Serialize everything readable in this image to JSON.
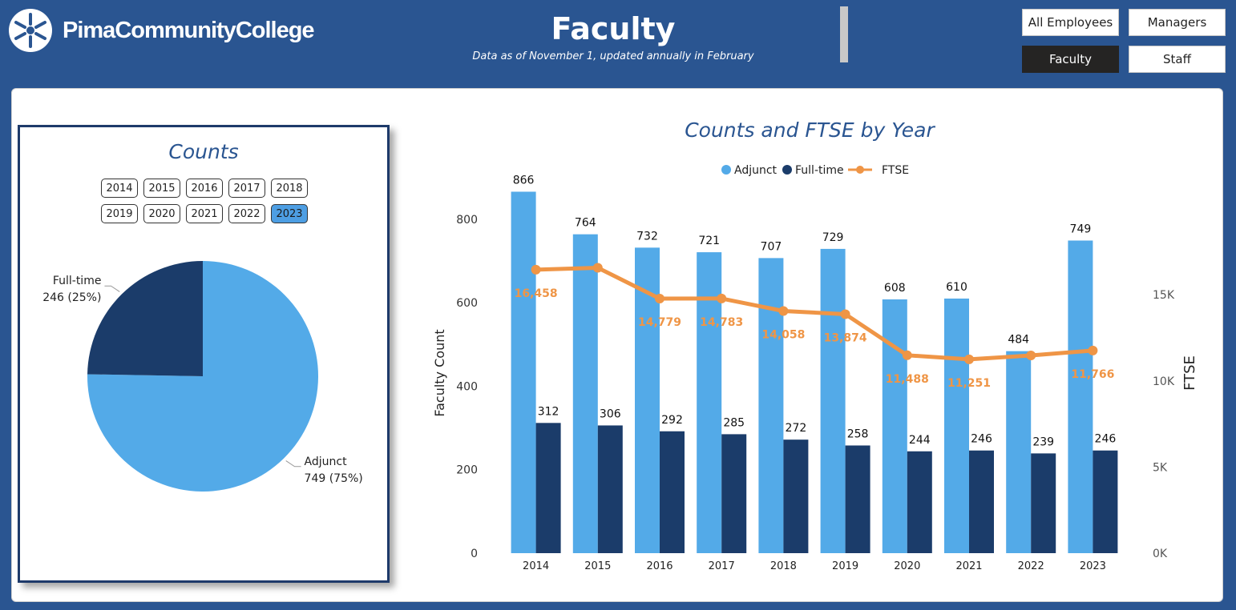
{
  "header": {
    "college_name": "PimaCommunityCollege",
    "title": "Faculty",
    "subtitle": "Data as of November 1, updated annually in February"
  },
  "nav": {
    "all_employees": "All Employees",
    "managers": "Managers",
    "faculty": "Faculty",
    "staff": "Staff",
    "active": "Faculty"
  },
  "colors": {
    "adjunct": "#53aae8",
    "fulltime": "#1b3c6a",
    "ftse": "#ef9546",
    "header_bg": "#2a5591"
  },
  "counts_card": {
    "title": "Counts",
    "years": [
      "2014",
      "2015",
      "2016",
      "2017",
      "2018",
      "2019",
      "2020",
      "2021",
      "2022",
      "2023"
    ],
    "selected_year": "2023"
  },
  "chart_data": [
    {
      "type": "pie",
      "title": "Counts",
      "slices": [
        {
          "label": "Adjunct",
          "value": 749,
          "display": "749 (75%)",
          "color": "#53aae8"
        },
        {
          "label": "Full-time",
          "value": 246,
          "display": "246 (25%)",
          "color": "#1b3c6a"
        }
      ]
    },
    {
      "type": "bar",
      "title": "Counts and FTSE by Year",
      "categories": [
        "2014",
        "2015",
        "2016",
        "2017",
        "2018",
        "2019",
        "2020",
        "2021",
        "2022",
        "2023"
      ],
      "series": [
        {
          "name": "Adjunct",
          "values": [
            866,
            764,
            732,
            721,
            707,
            729,
            608,
            610,
            484,
            749
          ],
          "labels": [
            "866",
            "764",
            "732",
            "721",
            "707",
            "729",
            "608",
            "610",
            "484",
            "749"
          ]
        },
        {
          "name": "Full-time",
          "values": [
            312,
            306,
            292,
            285,
            272,
            258,
            244,
            246,
            239,
            246
          ],
          "labels": [
            "312",
            "306",
            "292",
            "285",
            "272",
            "258",
            "244",
            "246",
            "239",
            "246"
          ]
        }
      ],
      "line_series": {
        "name": "FTSE",
        "values": [
          16458,
          16570,
          14779,
          14783,
          14058,
          13874,
          11488,
          11251,
          11480,
          11766
        ],
        "labels": [
          "16,458",
          "",
          "14,779",
          "14,783",
          "14,058",
          "13,874",
          "11,488",
          "11,251",
          "",
          "11,766"
        ]
      },
      "ylabel": "Faculty Count",
      "y2label": "FTSE",
      "ylim": [
        0,
        865
      ],
      "y2lim": [
        0,
        20960
      ],
      "yticks": [
        "0",
        "200",
        "400",
        "600",
        "800"
      ],
      "yticks_values": [
        0,
        200,
        400,
        600,
        800
      ],
      "y2ticks": [
        "0K",
        "5K",
        "10K",
        "15K"
      ],
      "y2ticks_values": [
        0,
        5000,
        10000,
        15000
      ],
      "legend": [
        "Adjunct",
        "Full-time",
        "FTSE"
      ]
    }
  ]
}
